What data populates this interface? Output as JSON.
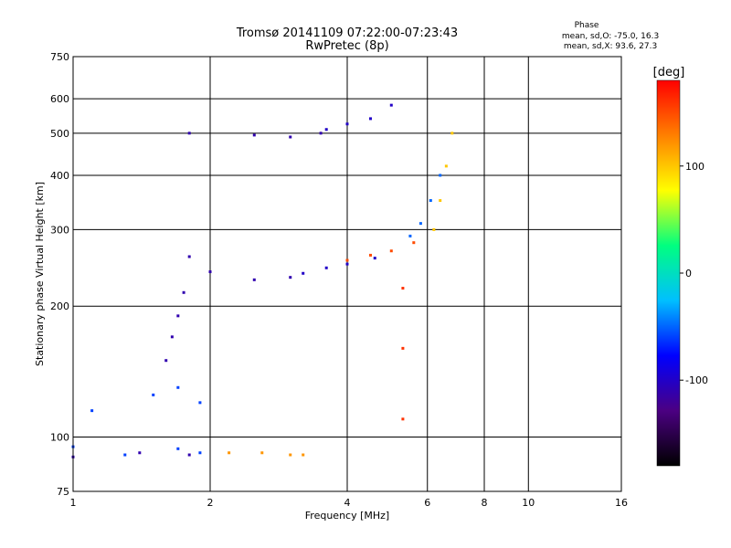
{
  "chart_data": {
    "type": "scatter",
    "title": "Tromsø 20141109 07:22:00-07:23:43",
    "subtitle": "RwPretec (8p)",
    "xlabel": "Frequency [MHz]",
    "ylabel": "Stationary phase Virtual Height [km]",
    "x_scale": "log",
    "y_scale": "log",
    "xlim": [
      1,
      16
    ],
    "ylim": [
      75,
      750
    ],
    "x_ticks": [
      1,
      2,
      4,
      6,
      8,
      10,
      16
    ],
    "y_ticks": [
      75,
      100,
      200,
      300,
      400,
      500,
      600,
      750
    ],
    "grid": true,
    "stats": {
      "title": "Phase",
      "line_o": "mean, sd,O: -75.0, 16.3",
      "line_x": "mean, sd,X:  93.6, 27.3"
    },
    "colorbar": {
      "label": "[deg]",
      "ticks": [
        100,
        0,
        -100
      ],
      "range": [
        -180,
        180
      ],
      "colormap": [
        "#000000",
        "#4b0082",
        "#0000ff",
        "#00bfff",
        "#00ff80",
        "#ffff00",
        "#ff8000",
        "#ff0000"
      ]
    },
    "series": [
      {
        "x": [
          1.0,
          1.4,
          1.8
        ],
        "y": [
          90,
          92,
          91
        ],
        "phase": -110
      },
      {
        "x": [
          1.0,
          1.3,
          1.7,
          1.9
        ],
        "y": [
          95,
          91,
          94,
          92
        ],
        "phase": -60
      },
      {
        "x": [
          2.2,
          2.6,
          3.0,
          3.2
        ],
        "y": [
          92,
          92,
          91,
          91
        ],
        "phase": 120
      },
      {
        "x": [
          1.1,
          1.5,
          1.7,
          1.9
        ],
        "y": [
          115,
          125,
          130,
          120
        ],
        "phase": -60
      },
      {
        "x": [
          1.6,
          1.65,
          1.7,
          1.75
        ],
        "y": [
          150,
          170,
          190,
          215
        ],
        "phase": -110
      },
      {
        "x": [
          1.8,
          2.0,
          2.5,
          3.0
        ],
        "y": [
          260,
          240,
          230,
          233
        ],
        "phase": -110
      },
      {
        "x": [
          3.2,
          3.6,
          4.0,
          4.6
        ],
        "y": [
          238,
          245,
          250,
          258
        ],
        "phase": -100
      },
      {
        "x": [
          4.0,
          4.5,
          5.0,
          5.6
        ],
        "y": [
          255,
          262,
          268,
          280
        ],
        "phase": 150
      },
      {
        "x": [
          5.5,
          5.8,
          6.1,
          6.4
        ],
        "y": [
          290,
          310,
          350,
          400
        ],
        "phase": -50
      },
      {
        "x": [
          6.2,
          6.4,
          6.6,
          6.8
        ],
        "y": [
          300,
          350,
          420,
          500
        ],
        "phase": 100
      },
      {
        "x": [
          1.8,
          2.5,
          3.0,
          3.5
        ],
        "y": [
          500,
          495,
          490,
          500
        ],
        "phase": -110
      },
      {
        "x": [
          3.6,
          4.0,
          4.5,
          5.0
        ],
        "y": [
          510,
          525,
          540,
          580
        ],
        "phase": -100
      },
      {
        "x": [
          5.3,
          5.3,
          5.3
        ],
        "y": [
          110,
          160,
          220
        ],
        "phase": 160
      }
    ]
  }
}
